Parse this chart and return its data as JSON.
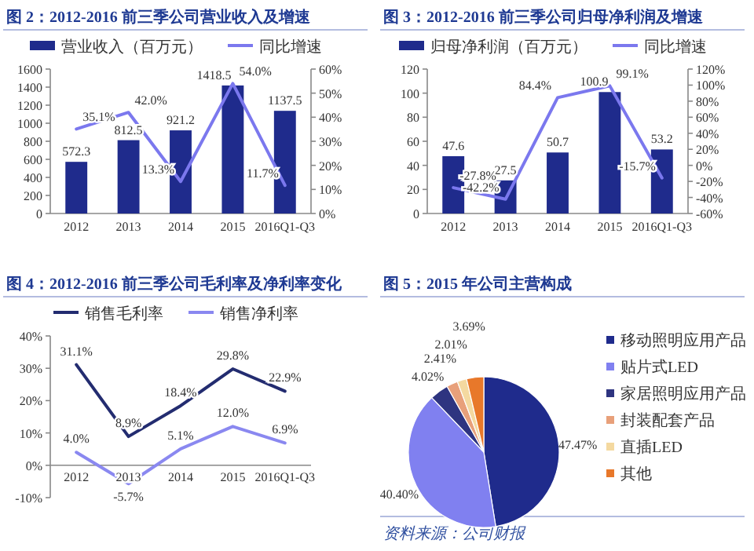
{
  "chart_data": [
    {
      "type": "bar",
      "title": "图 2：2012-2016 前三季公司营业收入及增速",
      "categories": [
        "2012",
        "2013",
        "2014",
        "2015",
        "2016Q1-Q3"
      ],
      "legend": "top",
      "ylim": [
        0,
        1600
      ],
      "yticks": [
        0,
        200,
        400,
        600,
        800,
        1000,
        1200,
        1400,
        1600
      ],
      "y2lim": [
        0,
        60
      ],
      "y2ticks": [
        {
          "value": 0,
          "label": "0%"
        },
        {
          "value": 10,
          "label": "10%"
        },
        {
          "value": 20,
          "label": "20%"
        },
        {
          "value": 30,
          "label": "30%"
        },
        {
          "value": 40,
          "label": "40%"
        },
        {
          "value": 50,
          "label": "50%"
        },
        {
          "value": 60,
          "label": "60%"
        }
      ],
      "series": [
        {
          "name": "营业收入（百万元）",
          "color": "#1f2b8c",
          "values": [
            572.3,
            812.5,
            921.2,
            1418.5,
            1137.5
          ],
          "value_labels": [
            "572.3",
            "812.5",
            "921.2",
            "1418.5",
            "1137.5"
          ]
        },
        {
          "name": "同比增速",
          "type": "line",
          "axis": "y2",
          "color": "#7b78ee",
          "values": [
            35.1,
            42.0,
            13.3,
            54.0,
            11.7
          ],
          "value_labels": [
            "35.1%",
            "42.0%",
            "13.3%",
            "54.0%",
            "11.7%"
          ]
        }
      ]
    },
    {
      "type": "bar",
      "title": "图 3：2012-2016 前三季公司归母净利润及增速",
      "categories": [
        "2012",
        "2013",
        "2014",
        "2015",
        "2016Q1-Q3"
      ],
      "legend": "top",
      "ylim": [
        0,
        120
      ],
      "yticks": [
        0,
        20,
        40,
        60,
        80,
        100,
        120
      ],
      "y2lim": [
        -60,
        120
      ],
      "y2ticks": [
        {
          "value": -60,
          "label": "-60%"
        },
        {
          "value": -40,
          "label": "-40%"
        },
        {
          "value": -20,
          "label": "-20%"
        },
        {
          "value": 0,
          "label": "0%"
        },
        {
          "value": 20,
          "label": "20%"
        },
        {
          "value": 40,
          "label": "40%"
        },
        {
          "value": 60,
          "label": "60%"
        },
        {
          "value": 80,
          "label": "80%"
        },
        {
          "value": 100,
          "label": "100%"
        },
        {
          "value": 120,
          "label": "120%"
        }
      ],
      "series": [
        {
          "name": "归母净利润（百万元）",
          "color": "#1f2b8c",
          "values": [
            47.6,
            27.5,
            50.7,
            100.9,
            53.2
          ],
          "value_labels": [
            "47.6",
            "27.5",
            "50.7",
            "100.9",
            "53.2"
          ]
        },
        {
          "name": "同比增速",
          "type": "line",
          "axis": "y2",
          "color": "#7b78ee",
          "values": [
            -27.8,
            -42.2,
            84.4,
            99.1,
            -15.7
          ],
          "value_labels": [
            "-27.8%",
            "-42.2%",
            "84.4%",
            "99.1%",
            "-15.7%"
          ]
        }
      ]
    },
    {
      "type": "line",
      "title": "图 4：2012-2016 前三季公司毛利率及净利率变化",
      "categories": [
        "2012",
        "2013",
        "2014",
        "2015",
        "2016Q1-Q3"
      ],
      "legend": "top",
      "ylim": [
        -10,
        40
      ],
      "yticks": [
        {
          "value": -10,
          "label": "-10%"
        },
        {
          "value": 0,
          "label": "0%"
        },
        {
          "value": 10,
          "label": "10%"
        },
        {
          "value": 20,
          "label": "20%"
        },
        {
          "value": 30,
          "label": "30%"
        },
        {
          "value": 40,
          "label": "40%"
        }
      ],
      "series": [
        {
          "name": "销售毛利率",
          "color": "#232c70",
          "values": [
            31.1,
            8.9,
            18.4,
            29.8,
            22.9
          ],
          "value_labels": [
            "31.1%",
            "8.9%",
            "18.4%",
            "29.8%",
            "22.9%"
          ]
        },
        {
          "name": "销售净利率",
          "color": "#8a88f0",
          "values": [
            4.0,
            -5.7,
            5.1,
            12.0,
            6.9
          ],
          "value_labels": [
            "4.0%",
            "-5.7%",
            "5.1%",
            "12.0%",
            "6.9%"
          ]
        }
      ]
    },
    {
      "type": "pie",
      "title": "图 5：2015 年公司主营构成",
      "legend": "right",
      "categories": [
        "移动照明应用产品",
        "贴片式LED",
        "家居照明应用产品",
        "封装配套产品",
        "直插LED",
        "其他"
      ],
      "values": [
        47.47,
        40.4,
        4.02,
        2.41,
        2.01,
        3.69
      ],
      "value_labels": [
        "47.47%",
        "40.40%",
        "4.02%",
        "2.41%",
        "2.01%",
        "3.69%"
      ],
      "colors": [
        "#1f2b8c",
        "#8080f0",
        "#2e3480",
        "#e8a07a",
        "#f4d9a0",
        "#e8782a"
      ],
      "annotations": [
        "资料来源：公司财报"
      ]
    }
  ]
}
